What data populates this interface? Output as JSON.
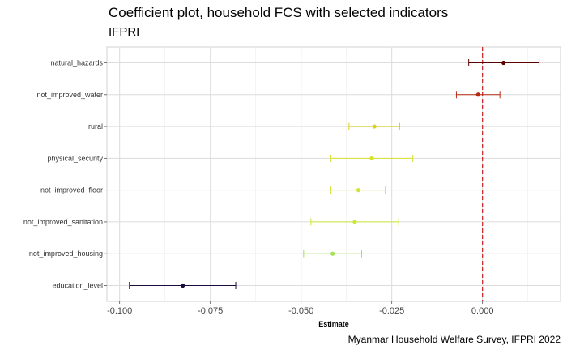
{
  "title": "Coefficient plot, household FCS with selected indicators",
  "subtitle": "IFPRI",
  "caption": "Myanmar Household Welfare Survey, IFPRI 2022",
  "chart_data": {
    "type": "scatter",
    "xlabel": "Estimate",
    "ylabel": "",
    "xlim": [
      -0.1035,
      0.0215
    ],
    "x_ticks": [
      -0.1,
      -0.075,
      -0.05,
      -0.025,
      0.0
    ],
    "x_tick_labels": [
      "-0.100",
      "-0.075",
      "-0.050",
      "-0.025",
      "0.000"
    ],
    "reference_line": {
      "x": 0.0,
      "color": "#cc2222",
      "style": "dashed"
    },
    "grid": true,
    "points": [
      {
        "label": "natural_hazards",
        "estimate": 0.0058,
        "low": -0.0038,
        "high": 0.0156,
        "color": "#5a0000"
      },
      {
        "label": "not_improved_water",
        "estimate": -0.0012,
        "low": -0.0072,
        "high": 0.0048,
        "color": "#b32a0e"
      },
      {
        "label": "rural",
        "estimate": -0.0298,
        "low": -0.0368,
        "high": -0.0228,
        "color": "#ddd024"
      },
      {
        "label": "physical_security",
        "estimate": -0.0305,
        "low": -0.0418,
        "high": -0.0192,
        "color": "#d8e232"
      },
      {
        "label": "not_improved_floor",
        "estimate": -0.0342,
        "low": -0.0418,
        "high": -0.0268,
        "color": "#d2e636"
      },
      {
        "label": "not_improved_sanitation",
        "estimate": -0.0352,
        "low": -0.0473,
        "high": -0.0231,
        "color": "#c8e83a"
      },
      {
        "label": "not_improved_housing",
        "estimate": -0.0413,
        "low": -0.0493,
        "high": -0.0333,
        "color": "#a4e254"
      },
      {
        "label": "education_level",
        "estimate": -0.0826,
        "low": -0.0973,
        "high": -0.068,
        "color": "#1c0a3a"
      }
    ]
  }
}
